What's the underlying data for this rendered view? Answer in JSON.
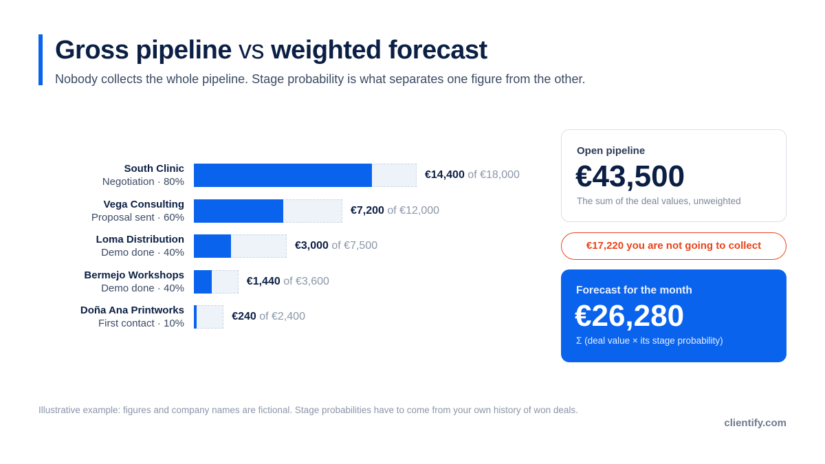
{
  "header": {
    "title_part1": "Gross pipeline",
    "title_vs": "vs",
    "title_part2": "weighted forecast",
    "subtitle": "Nobody collects the whole pipeline. Stage probability is what separates one figure from the other."
  },
  "chart_data": {
    "type": "bar",
    "orientation": "horizontal",
    "title": "",
    "xlabel": "",
    "ylabel": "",
    "rows": [
      {
        "name": "South Clinic",
        "stage": "Negotiation · 80%",
        "total": 18000,
        "weighted": 14400,
        "weighted_label": "€14,400",
        "total_label": "of €18,000"
      },
      {
        "name": "Vega Consulting",
        "stage": "Proposal sent · 60%",
        "total": 12000,
        "weighted": 7200,
        "weighted_label": "€7,200",
        "total_label": "of €12,000"
      },
      {
        "name": "Loma Distribution",
        "stage": "Demo done · 40%",
        "total": 7500,
        "weighted": 3000,
        "weighted_label": "€3,000",
        "total_label": "of €7,500"
      },
      {
        "name": "Bermejo Workshops",
        "stage": "Demo done · 40%",
        "total": 3600,
        "weighted": 1440,
        "weighted_label": "€1,440",
        "total_label": "of €3,600"
      },
      {
        "name": "Doña Ana Printworks",
        "stage": "First contact · 10%",
        "total": 2400,
        "weighted": 240,
        "weighted_label": "€240",
        "total_label": "of €2,400"
      }
    ],
    "colors": {
      "weighted": "#0a63ec",
      "total": "#eef3fa"
    }
  },
  "cards": {
    "open": {
      "label": "Open pipeline",
      "value": "€43,500",
      "note": "The sum of the deal values, unweighted"
    },
    "gap": "€17,220 you are not going to collect",
    "forecast": {
      "label": "Forecast for the month",
      "value": "€26,280",
      "note": "Σ (deal value × its stage probability)"
    }
  },
  "footer": {
    "note": "Illustrative example: figures and company names are fictional. Stage probabilities have to come from your own history of won deals.",
    "brand": "clientify.com"
  }
}
